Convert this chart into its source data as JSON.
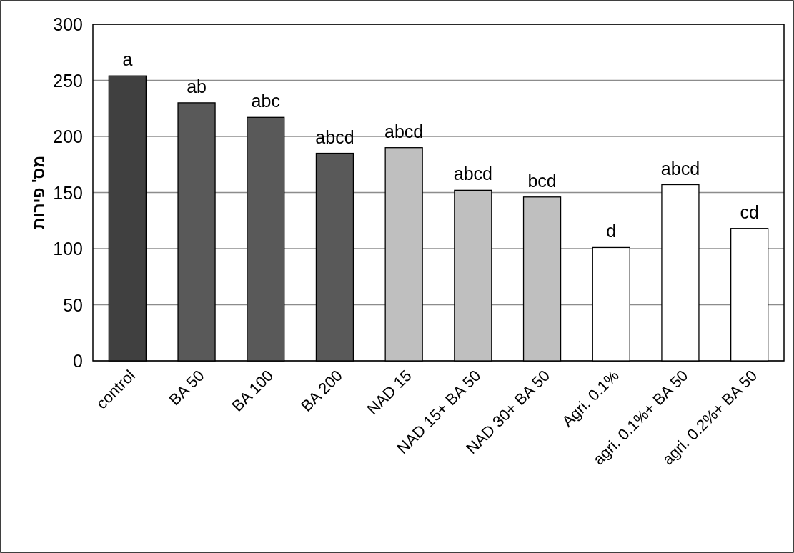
{
  "chart_data": {
    "type": "bar",
    "ylabel": "מס' פירות",
    "categories": [
      "control",
      "BA 50",
      "BA 100",
      "BA 200",
      "NAD 15",
      "NAD 15+ BA 50",
      "NAD 30+ BA 50",
      "Agri. 0.1%",
      "agri. 0.1%+ BA 50",
      "agri. 0.2%+ BA 50"
    ],
    "values": [
      254,
      230,
      217,
      185,
      190,
      152,
      146,
      101,
      157,
      118
    ],
    "colors": [
      "#404040",
      "#595959",
      "#595959",
      "#595959",
      "#bfbfbf",
      "#bfbfbf",
      "#bfbfbf",
      "#ffffff",
      "#ffffff",
      "#ffffff"
    ],
    "ylim": [
      0,
      300
    ],
    "yticks": [
      0,
      50,
      100,
      150,
      200,
      250,
      300
    ],
    "grid": "y",
    "annotations": [
      {
        "text": "a",
        "x": "control",
        "y": 254
      },
      {
        "text": "ab",
        "x": "BA 50",
        "y": 230
      },
      {
        "text": "abc",
        "x": "BA 100",
        "y": 217
      },
      {
        "text": "abcd",
        "x": "BA 200",
        "y": 185
      },
      {
        "text": "abcd",
        "x": "NAD 15",
        "y": 190
      },
      {
        "text": "abcd",
        "x": "NAD 15+ BA 50",
        "y": 152
      },
      {
        "text": "bcd",
        "x": "NAD 30+ BA 50",
        "y": 146
      },
      {
        "text": "d",
        "x": "Agri. 0.1%",
        "y": 101
      },
      {
        "text": "abcd",
        "x": "agri. 0.1%+ BA 50",
        "y": 157
      },
      {
        "text": "cd",
        "x": "agri. 0.2%+ BA 50",
        "y": 118
      }
    ]
  }
}
